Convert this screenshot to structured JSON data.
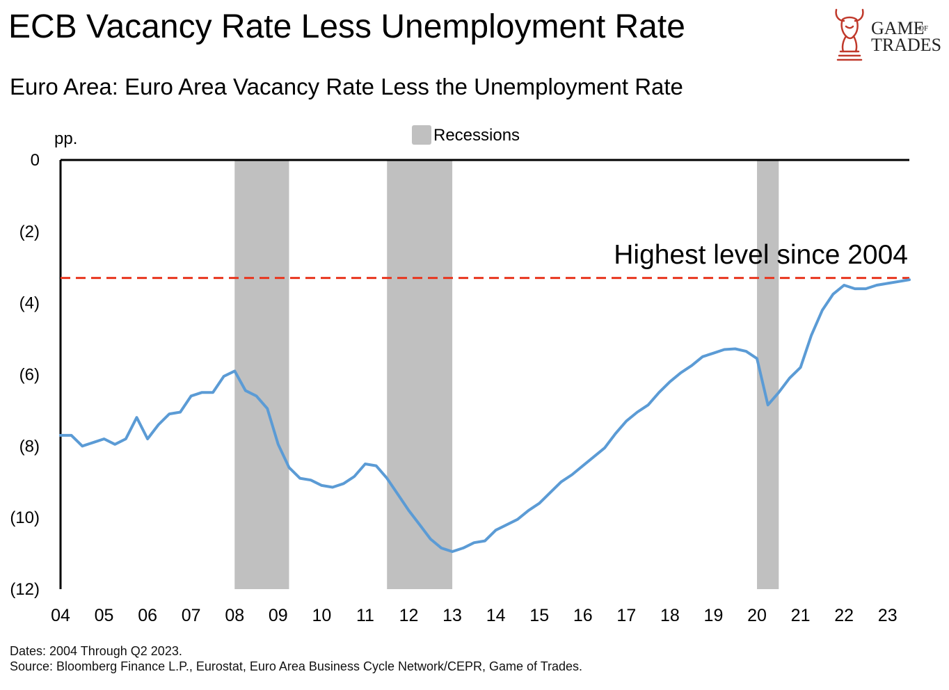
{
  "header": {
    "title": "ECB Vacancy Rate Less Unemployment Rate",
    "subtitle": "Euro Area: Euro Area Vacancy Rate Less the Unemployment Rate"
  },
  "logo": {
    "line1": "GAME",
    "of": "OF",
    "line2": "TRADES",
    "icon": "bull-chess-knight-icon",
    "color": "#c0392b"
  },
  "footer": {
    "dates": "Dates: 2004 Through Q2 2023.",
    "source": "Source: Bloomberg Finance L.P., Eurostat, Euro Area Business Cycle Network/CEPR, Game of Trades."
  },
  "chart_data": {
    "type": "line",
    "ylabel": "pp.",
    "ylim": [
      -12,
      0
    ],
    "xlim": [
      2004.0,
      2023.5
    ],
    "y_ticks": [
      0,
      -2,
      -4,
      -6,
      -8,
      -10,
      -12
    ],
    "y_tick_labels": [
      "0",
      "(2)",
      "(4)",
      "(6)",
      "(8)",
      "(10)",
      "(12)"
    ],
    "x_ticks": [
      2004,
      2005,
      2006,
      2007,
      2008,
      2009,
      2010,
      2011,
      2012,
      2013,
      2014,
      2015,
      2016,
      2017,
      2018,
      2019,
      2020,
      2021,
      2022,
      2023
    ],
    "x_tick_labels": [
      "04",
      "05",
      "06",
      "07",
      "08",
      "09",
      "10",
      "11",
      "12",
      "13",
      "14",
      "15",
      "16",
      "17",
      "18",
      "19",
      "20",
      "21",
      "22",
      "23"
    ],
    "legend": {
      "label": "Recessions",
      "position": "top-center",
      "color": "#c0c0c0"
    },
    "recessions": [
      [
        2008.0,
        2009.25
      ],
      [
        2011.5,
        2013.0
      ],
      [
        2020.0,
        2020.5
      ]
    ],
    "reference_line": {
      "y": -3.3,
      "label": "Highest level since 2004",
      "color": "#e8361e",
      "style": "dashed"
    },
    "series": [
      {
        "color": "#5b9bd5",
        "x": [
          2004.0,
          2004.25,
          2004.5,
          2004.75,
          2005.0,
          2005.25,
          2005.5,
          2005.75,
          2006.0,
          2006.25,
          2006.5,
          2006.75,
          2007.0,
          2007.25,
          2007.5,
          2007.75,
          2008.0,
          2008.25,
          2008.5,
          2008.75,
          2009.0,
          2009.25,
          2009.5,
          2009.75,
          2010.0,
          2010.25,
          2010.5,
          2010.75,
          2011.0,
          2011.25,
          2011.5,
          2011.75,
          2012.0,
          2012.25,
          2012.5,
          2012.75,
          2013.0,
          2013.25,
          2013.5,
          2013.75,
          2014.0,
          2014.25,
          2014.5,
          2014.75,
          2015.0,
          2015.25,
          2015.5,
          2015.75,
          2016.0,
          2016.25,
          2016.5,
          2016.75,
          2017.0,
          2017.25,
          2017.5,
          2017.75,
          2018.0,
          2018.25,
          2018.5,
          2018.75,
          2019.0,
          2019.25,
          2019.5,
          2019.75,
          2020.0,
          2020.25,
          2020.5,
          2020.75,
          2021.0,
          2021.25,
          2021.5,
          2021.75,
          2022.0,
          2022.25,
          2022.5,
          2022.75,
          2023.0,
          2023.25,
          2023.5
        ],
        "values": [
          -7.7,
          -7.7,
          -8.0,
          -7.9,
          -7.8,
          -7.95,
          -7.8,
          -7.2,
          -7.8,
          -7.4,
          -7.1,
          -7.05,
          -6.6,
          -6.5,
          -6.5,
          -6.05,
          -5.9,
          -6.45,
          -6.6,
          -6.95,
          -7.95,
          -8.6,
          -8.9,
          -8.95,
          -9.1,
          -9.15,
          -9.05,
          -8.85,
          -8.5,
          -8.55,
          -8.9,
          -9.35,
          -9.8,
          -10.2,
          -10.6,
          -10.85,
          -10.95,
          -10.85,
          -10.7,
          -10.65,
          -10.35,
          -10.2,
          -10.05,
          -9.8,
          -9.6,
          -9.3,
          -9.0,
          -8.8,
          -8.55,
          -8.3,
          -8.05,
          -7.65,
          -7.3,
          -7.05,
          -6.85,
          -6.5,
          -6.2,
          -5.95,
          -5.75,
          -5.5,
          -5.4,
          -5.3,
          -5.28,
          -5.35,
          -5.55,
          -6.85,
          -6.5,
          -6.1,
          -5.8,
          -4.9,
          -4.2,
          -3.75,
          -3.5,
          -3.6,
          -3.6,
          -3.5,
          -3.45,
          -3.4,
          -3.35
        ]
      }
    ]
  }
}
